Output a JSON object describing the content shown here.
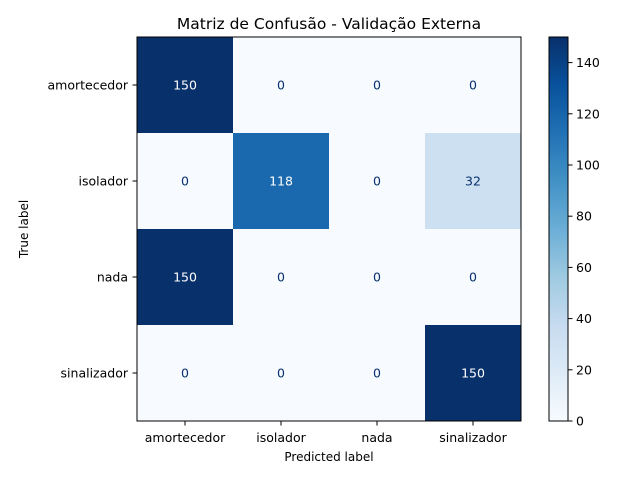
{
  "chart_data": {
    "type": "heatmap",
    "title": "Matriz de Confusão - Validação Externa",
    "xlabel": "Predicted label",
    "ylabel": "True label",
    "x_categories": [
      "amortecedor",
      "isolador",
      "nada",
      "sinalizador"
    ],
    "y_categories": [
      "amortecedor",
      "isolador",
      "nada",
      "sinalizador"
    ],
    "values": [
      [
        150,
        0,
        0,
        0
      ],
      [
        0,
        118,
        0,
        32
      ],
      [
        150,
        0,
        0,
        0
      ],
      [
        0,
        0,
        0,
        150
      ]
    ],
    "colorbar": {
      "min": 0,
      "max": 150,
      "ticks": [
        0,
        20,
        40,
        60,
        80,
        100,
        120,
        140
      ],
      "colormap": "Blues"
    },
    "grid": false
  }
}
